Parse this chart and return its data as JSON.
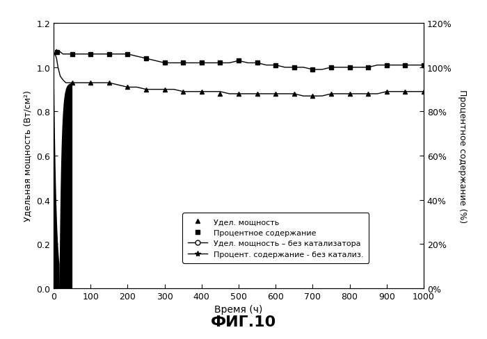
{
  "title": "ФИГ.10",
  "xlabel": "Время (ч)",
  "ylabel_left": "Удельная мощность (Вт/см²)",
  "ylabel_right": "Процентное содержание (%)",
  "xlim": [
    0,
    1000
  ],
  "ylim_left": [
    0.0,
    1.2
  ],
  "ylim_right": [
    0.0,
    1.2
  ],
  "xticks": [
    0,
    100,
    200,
    300,
    400,
    500,
    600,
    700,
    800,
    900,
    1000
  ],
  "yticks_left": [
    0.0,
    0.2,
    0.4,
    0.6,
    0.8,
    1.0,
    1.2
  ],
  "yticks_right_vals": [
    0.0,
    0.2,
    0.4,
    0.6,
    0.8,
    1.0,
    1.2
  ],
  "yticks_right_labels": [
    "0%",
    "20%",
    "40%",
    "60%",
    "80%",
    "100%",
    "120%"
  ],
  "power_density_x": [
    0,
    2,
    4,
    6,
    8,
    10,
    12,
    15,
    18,
    22,
    27,
    33,
    40,
    50,
    60,
    75,
    100,
    125,
    150,
    175,
    200,
    225,
    250,
    275,
    300,
    325,
    350,
    375,
    400,
    425,
    450,
    475,
    500,
    525,
    550,
    575,
    600,
    625,
    650,
    675,
    700,
    725,
    750,
    775,
    800,
    825,
    850,
    875,
    900,
    925,
    950,
    975,
    1000
  ],
  "power_density_y": [
    1.05,
    1.06,
    1.06,
    1.05,
    1.04,
    1.02,
    1.0,
    0.98,
    0.96,
    0.95,
    0.94,
    0.93,
    0.93,
    0.93,
    0.93,
    0.93,
    0.93,
    0.93,
    0.93,
    0.92,
    0.91,
    0.91,
    0.9,
    0.9,
    0.9,
    0.9,
    0.89,
    0.89,
    0.89,
    0.89,
    0.89,
    0.88,
    0.88,
    0.88,
    0.88,
    0.88,
    0.88,
    0.88,
    0.88,
    0.87,
    0.87,
    0.87,
    0.88,
    0.88,
    0.88,
    0.88,
    0.88,
    0.88,
    0.89,
    0.89,
    0.89,
    0.89,
    0.89
  ],
  "pct_content_x": [
    0,
    2,
    5,
    8,
    12,
    18,
    25,
    35,
    50,
    75,
    100,
    125,
    150,
    175,
    200,
    225,
    250,
    275,
    300,
    325,
    350,
    375,
    400,
    425,
    450,
    475,
    500,
    525,
    550,
    575,
    600,
    625,
    650,
    675,
    700,
    725,
    750,
    775,
    800,
    825,
    850,
    875,
    900,
    925,
    950,
    975,
    1000
  ],
  "pct_content_y": [
    1.05,
    1.06,
    1.07,
    1.08,
    1.07,
    1.07,
    1.06,
    1.06,
    1.06,
    1.06,
    1.06,
    1.06,
    1.06,
    1.06,
    1.06,
    1.05,
    1.04,
    1.03,
    1.02,
    1.02,
    1.02,
    1.02,
    1.02,
    1.02,
    1.02,
    1.02,
    1.03,
    1.02,
    1.02,
    1.01,
    1.01,
    1.0,
    1.0,
    1.0,
    0.99,
    0.99,
    1.0,
    1.0,
    1.0,
    1.0,
    1.0,
    1.01,
    1.01,
    1.01,
    1.01,
    1.01,
    1.01
  ],
  "pd_marker_x": [
    50,
    100,
    150,
    200,
    250,
    300,
    350,
    400,
    450,
    500,
    550,
    600,
    650,
    700,
    750,
    800,
    850,
    900,
    950,
    1000
  ],
  "pd_marker_y": [
    0.93,
    0.93,
    0.93,
    0.91,
    0.9,
    0.9,
    0.89,
    0.89,
    0.88,
    0.88,
    0.88,
    0.88,
    0.88,
    0.87,
    0.88,
    0.88,
    0.88,
    0.89,
    0.89,
    0.89
  ],
  "pc_marker_x": [
    10,
    50,
    100,
    150,
    200,
    250,
    300,
    350,
    400,
    450,
    500,
    550,
    600,
    650,
    700,
    750,
    800,
    850,
    900,
    950,
    1000
  ],
  "pc_marker_y": [
    1.07,
    1.06,
    1.06,
    1.06,
    1.06,
    1.04,
    1.02,
    1.02,
    1.02,
    1.02,
    1.03,
    1.02,
    1.01,
    1.0,
    0.99,
    1.0,
    1.0,
    1.0,
    1.01,
    1.01,
    1.01
  ],
  "legend_labels": [
    "Удел. мощность",
    "Процентное содержание",
    "Удел. мощность – без катализатора",
    "Процент. содержание - без катализ."
  ]
}
